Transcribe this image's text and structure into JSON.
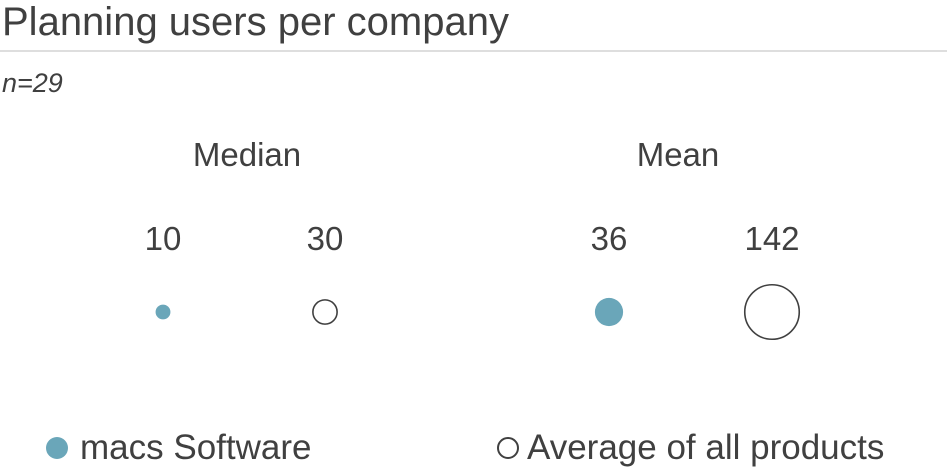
{
  "title": "Planning users per company",
  "sample": "n=29",
  "colors": {
    "macs": "#6aa6b9",
    "average": "#ffffff",
    "stroke": "#404040"
  },
  "legend": {
    "macs": "macs Software",
    "average": "Average of all products"
  },
  "chart_data": {
    "type": "bubble",
    "title": "Planning users per company",
    "groups": [
      "Median",
      "Mean"
    ],
    "series": [
      {
        "name": "macs Software",
        "values": [
          10,
          36
        ],
        "labels": [
          "10",
          "36"
        ]
      },
      {
        "name": "Average of all products",
        "values": [
          30,
          142
        ],
        "labels": [
          "30",
          "142"
        ]
      }
    ],
    "legend_position": "bottom"
  }
}
